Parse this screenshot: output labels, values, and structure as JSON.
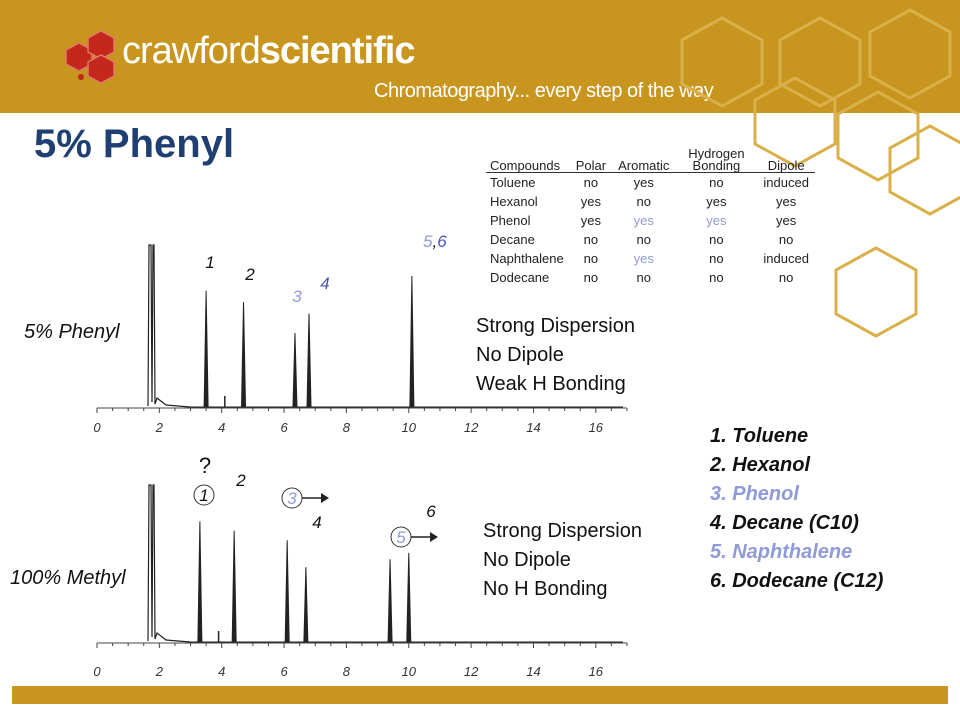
{
  "brand": {
    "name_light": "crawford",
    "name_bold": "scientific",
    "tagline": "Chromatography... every step of the way"
  },
  "title": "5% Phenyl",
  "table": {
    "headers": [
      "Compounds",
      "Polar",
      "Aromatic",
      "Hydrogen Bonding",
      "Dipole"
    ],
    "rows": [
      [
        "Toluene",
        "no",
        "yes",
        "no",
        "induced"
      ],
      [
        "Hexanol",
        "yes",
        "no",
        "yes",
        "yes"
      ],
      [
        "Phenol",
        "yes",
        "yes",
        "yes",
        "yes"
      ],
      [
        "Decane",
        "no",
        "no",
        "no",
        "no"
      ],
      [
        "Naphthalene",
        "no",
        "yes",
        "no",
        "induced"
      ],
      [
        "Dodecane",
        "no",
        "no",
        "no",
        "no"
      ]
    ]
  },
  "colors": {
    "brand_gold": "#c8951e",
    "title_blue": "#1f3f73",
    "highlight_blue": "#8f9ad8",
    "label_blue": "#4a55b8",
    "trace": "#222222"
  },
  "chart_data": [
    {
      "type": "line",
      "label": "5% Phenyl",
      "x_ticks": [
        0,
        2,
        4,
        6,
        8,
        10,
        12,
        14,
        16
      ],
      "xlim": [
        0,
        17
      ],
      "peaks": [
        {
          "label": "1",
          "rt": 3.5,
          "height": 0.72
        },
        {
          "label": "2",
          "rt": 4.7,
          "height": 0.65
        },
        {
          "label": "3",
          "rt": 6.35,
          "height": 0.46
        },
        {
          "label": "4",
          "rt": 6.8,
          "height": 0.58
        },
        {
          "label": "5,6",
          "rt": 10.1,
          "height": 0.81
        }
      ],
      "description": [
        "Strong Dispersion",
        "No Dipole",
        "Weak H Bonding"
      ]
    },
    {
      "type": "line",
      "label": "100% Methyl",
      "x_ticks": [
        0,
        2,
        4,
        6,
        8,
        10,
        12,
        14,
        16
      ],
      "xlim": [
        0,
        17
      ],
      "peaks": [
        {
          "label": "1",
          "rt": 3.3,
          "height": 0.77
        },
        {
          "label": "2",
          "rt": 4.4,
          "height": 0.71
        },
        {
          "label": "3",
          "rt": 6.1,
          "height": 0.65
        },
        {
          "label": "4",
          "rt": 6.7,
          "height": 0.48
        },
        {
          "label": "5",
          "rt": 9.4,
          "height": 0.53
        },
        {
          "label": "6",
          "rt": 10.0,
          "height": 0.57
        }
      ],
      "unknown_mark": "?",
      "description": [
        "Strong Dispersion",
        "No Dipole",
        "No H Bonding"
      ]
    }
  ],
  "legend": [
    {
      "text": "1. Toluene",
      "color": "#111111"
    },
    {
      "text": "2. Hexanol",
      "color": "#111111"
    },
    {
      "text": "3. Phenol",
      "color": "#8f9ad8"
    },
    {
      "text": "4. Decane (C10)",
      "color": "#111111"
    },
    {
      "text": "5. Naphthalene",
      "color": "#8f9ad8"
    },
    {
      "text": "6. Dodecane (C12)",
      "color": "#111111"
    }
  ]
}
